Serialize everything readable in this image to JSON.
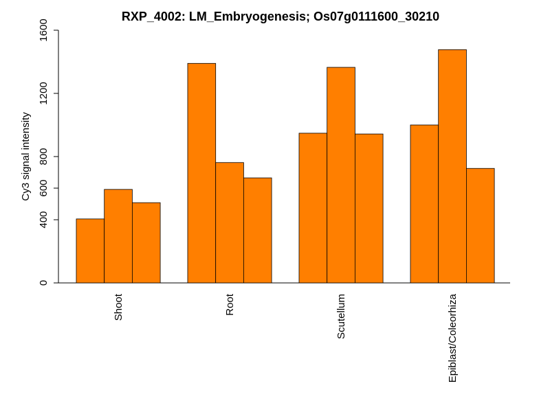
{
  "chart_data": {
    "type": "bar",
    "title": "RXP_4002: LM_Embryogenesis; Os07g0111600_30210",
    "xlabel": "",
    "ylabel": "Cy3 signal intensity",
    "ylim": [
      0,
      1600
    ],
    "yticks": [
      0,
      400,
      600,
      800,
      1200,
      1600
    ],
    "categories": [
      "Shoot",
      "Root",
      "Scutellum",
      "Epiblast/Coleorhiza"
    ],
    "groups": [
      {
        "category": "Shoot",
        "values": [
          405,
          592,
          508
        ]
      },
      {
        "category": "Root",
        "values": [
          1390,
          762,
          665
        ]
      },
      {
        "category": "Scutellum",
        "values": [
          948,
          1365,
          943
        ]
      },
      {
        "category": "Epiblast/Coleorhiza",
        "values": [
          1000,
          1477,
          725
        ]
      }
    ],
    "bar_color": "#ff7f00",
    "grid": false,
    "legend": "none"
  }
}
